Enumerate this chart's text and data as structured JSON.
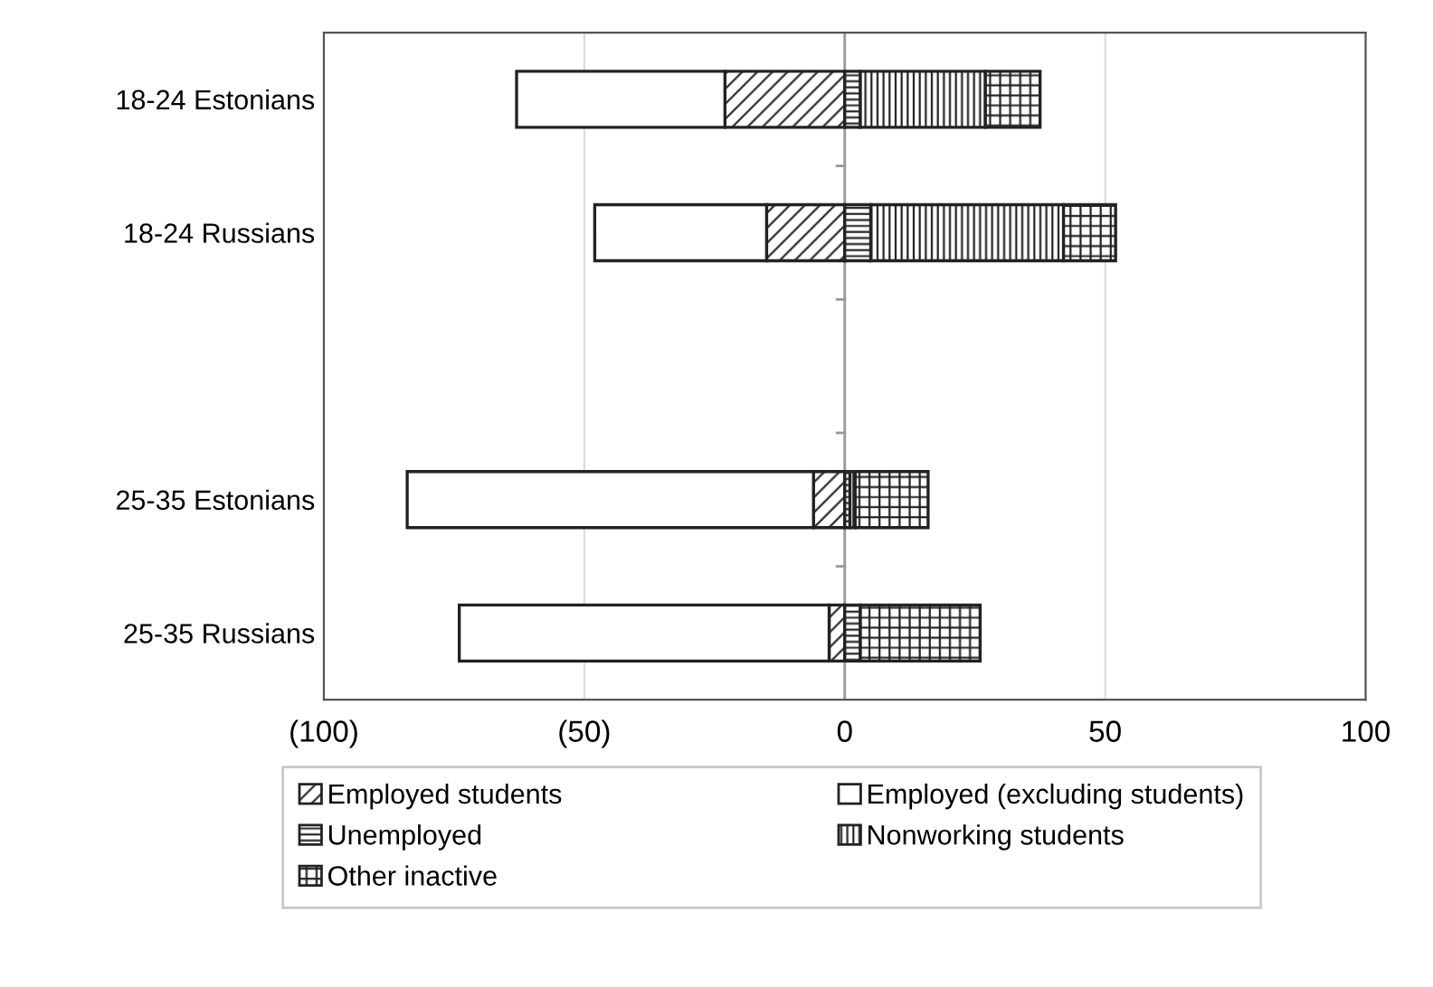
{
  "chart_data": {
    "type": "bar",
    "orientation": "horizontal",
    "stacked": true,
    "categories": [
      "18-24 Estonians",
      "18-24 Russians",
      null,
      "25-35 Estonians",
      "25-35 Russians"
    ],
    "series": [
      {
        "name": "Employed students",
        "color": "#222222",
        "values": [
          -23,
          -15,
          null,
          -6,
          -3
        ]
      },
      {
        "name": "Employed (excluding students)",
        "color": "#ffffff",
        "values": [
          -40,
          -33,
          null,
          -78,
          -71
        ]
      },
      {
        "name": "Unemployed",
        "color": "#222222",
        "values": [
          3,
          5,
          null,
          1,
          3
        ]
      },
      {
        "name": "Nonworking students",
        "color": "#222222",
        "values": [
          24,
          37,
          null,
          1,
          null
        ]
      },
      {
        "name": "Other inactive",
        "color": "#222222",
        "values": [
          10.5,
          10,
          null,
          14,
          23
        ]
      }
    ],
    "xlim": [
      -100,
      100
    ],
    "xticks": [
      {
        "value": -100,
        "label": "(100)"
      },
      {
        "value": -50,
        "label": "(50)"
      },
      0,
      50,
      100
    ],
    "grid": "x",
    "legend": "bottom"
  }
}
